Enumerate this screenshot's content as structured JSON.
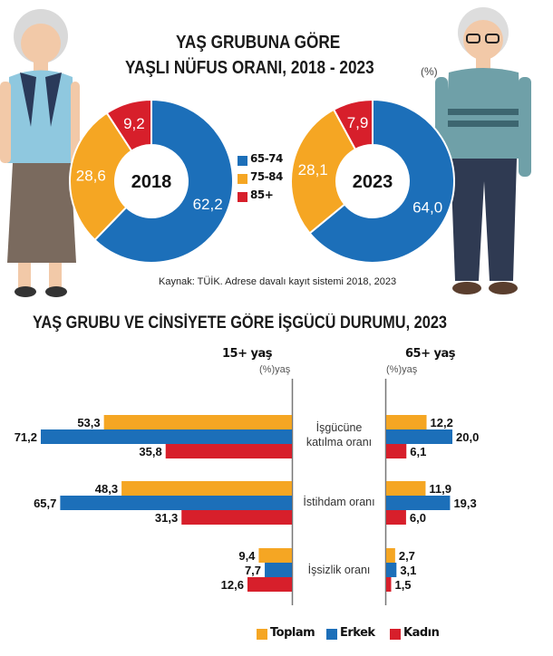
{
  "top": {
    "title_line1": "YAŞ GRUBUNA GÖRE",
    "title_line2": "YAŞLI NÜFUS ORANI, 2018 - 2023",
    "unit": "(%)",
    "source": "Kaynak: TÜİK. Adrese davalı kayıt sistemi 2018, 2023"
  },
  "bottom": {
    "title": "YAŞ GRUBU VE CİNSİYETE GÖRE İŞGÜCÜ DURUMU, 2023",
    "panel_left": "15+ yaş",
    "panel_right": "65+ yaş",
    "unit_left": "(%)yaş",
    "unit_right": "(%)yaş"
  },
  "colors": {
    "toplam": "#f5a623",
    "erkek": "#1c6fb9",
    "kadin": "#d71f2b",
    "c65_74": "#1c6fb9",
    "c75_84": "#f5a623",
    "c85": "#d71f2b"
  },
  "chart_data": [
    {
      "type": "pie",
      "variant": "donut",
      "title": "2018",
      "categories": [
        "65-74",
        "75-84",
        "85+"
      ],
      "values": [
        62.2,
        28.6,
        9.2
      ],
      "labels": [
        "62,2",
        "28,6",
        "9,2"
      ],
      "legend": "right"
    },
    {
      "type": "pie",
      "variant": "donut",
      "title": "2023",
      "categories": [
        "65-74",
        "75-84",
        "85+"
      ],
      "values": [
        64.0,
        28.1,
        7.9
      ],
      "labels": [
        "64,0",
        "28,1",
        "7,9"
      ]
    },
    {
      "type": "bar",
      "orientation": "horizontal",
      "title": "15+ yaş",
      "categories": [
        "İşgücüne katılma oranı",
        "İstihdam oranı",
        "İşsizlik oranı"
      ],
      "series": [
        {
          "name": "Toplam",
          "values": [
            53.3,
            48.3,
            9.4
          ],
          "labels": [
            "53,3",
            "48,3",
            "9,4"
          ]
        },
        {
          "name": "Erkek",
          "values": [
            71.2,
            65.7,
            7.7
          ],
          "labels": [
            "71,2",
            "65,7",
            "7,7"
          ]
        },
        {
          "name": "Kadın",
          "values": [
            35.8,
            31.3,
            12.6
          ],
          "labels": [
            "35,8",
            "31,3",
            "12,6"
          ]
        }
      ],
      "legend": "bottom"
    },
    {
      "type": "bar",
      "orientation": "horizontal",
      "title": "65+ yaş",
      "categories": [
        "İşgücüne katılma oranı",
        "İstihdam oranı",
        "İşsizlik oranı"
      ],
      "series": [
        {
          "name": "Toplam",
          "values": [
            12.2,
            11.9,
            2.7
          ],
          "labels": [
            "12,2",
            "11,9",
            "2,7"
          ]
        },
        {
          "name": "Erkek",
          "values": [
            20.0,
            19.3,
            3.1
          ],
          "labels": [
            "20,0",
            "19,3",
            "3,1"
          ]
        },
        {
          "name": "Kadın",
          "values": [
            6.1,
            6.0,
            1.5
          ],
          "labels": [
            "6,1",
            "6,0",
            "1,5"
          ]
        }
      ]
    }
  ],
  "categories_display": [
    [
      "İşgücüne",
      "katılma oranı"
    ],
    [
      "İstihdam oranı"
    ],
    [
      "İşsizlik oranı"
    ]
  ]
}
